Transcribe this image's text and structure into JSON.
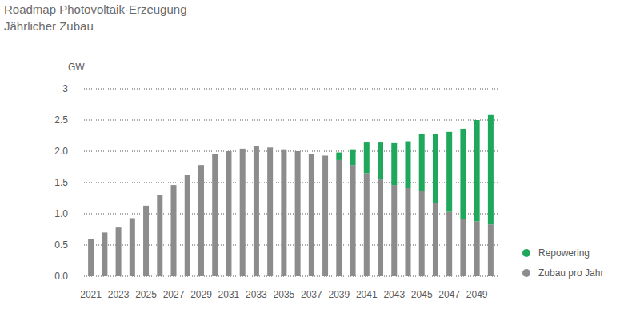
{
  "chart_data": {
    "type": "bar",
    "title": "Roadmap Photovoltaik-Erzeugung",
    "subtitle": "Jährlicher Zubau",
    "y_label": "GW",
    "stacked": true,
    "grid": true,
    "legend": "right",
    "categories": [
      "2021",
      null,
      "2023",
      null,
      "2025",
      null,
      "2027",
      null,
      "2029",
      null,
      "2031",
      null,
      "2033",
      null,
      "2035",
      null,
      "2037",
      null,
      "2039",
      null,
      "2041",
      null,
      "2043",
      null,
      "2045",
      null,
      "2047",
      null,
      "2049",
      null
    ],
    "series": [
      {
        "name": "Zubau pro Jahr",
        "color": "#8c8c8c",
        "values": [
          0.6,
          0.7,
          0.78,
          0.93,
          1.13,
          1.3,
          1.46,
          1.62,
          1.78,
          1.95,
          2.0,
          2.04,
          2.08,
          2.06,
          2.03,
          2.0,
          1.95,
          1.93,
          1.86,
          1.78,
          1.65,
          1.55,
          1.46,
          1.41,
          1.36,
          1.17,
          1.03,
          0.91,
          0.88,
          0.83
        ]
      },
      {
        "name": "Repowering",
        "color": "#1fa85c",
        "values": [
          0,
          0,
          0,
          0,
          0,
          0,
          0,
          0,
          0,
          0,
          0,
          0,
          0,
          0,
          0,
          0,
          0,
          0,
          0.12,
          0.25,
          0.49,
          0.59,
          0.67,
          0.75,
          0.91,
          1.1,
          1.28,
          1.45,
          1.62,
          1.75
        ]
      }
    ],
    "ylim": [
      0,
      3
    ],
    "yticks": [
      {
        "value": 0,
        "label": "0.0"
      },
      0.5,
      {
        "value": 1,
        "label": "1.0"
      },
      1.5,
      {
        "value": 2,
        "label": "2.0"
      },
      2.5,
      3
    ]
  }
}
